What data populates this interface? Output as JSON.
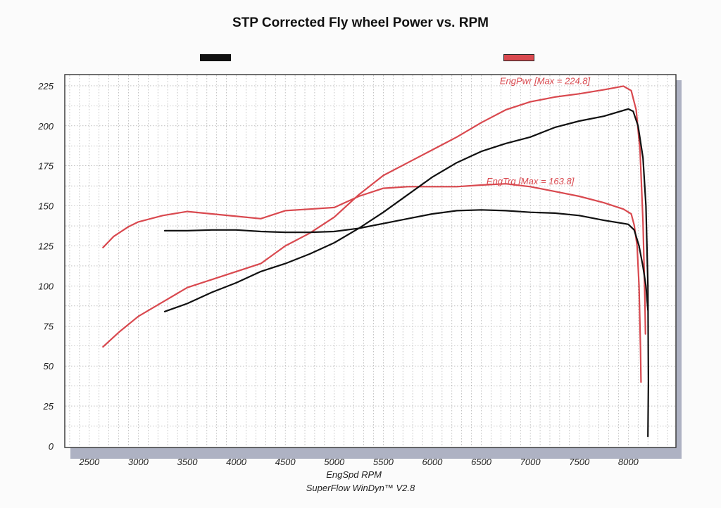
{
  "title": "STP Corrected Fly wheel Power vs. RPM",
  "footer": "SuperFlow WinDyn™ V2.8",
  "colors": {
    "red": "#d9494f",
    "black": "#111111",
    "grid": "#9a9a9a",
    "shadow": "#aeb2c3"
  },
  "chart_data": {
    "type": "line",
    "title": "STP Corrected Fly wheel Power vs. RPM",
    "xlabel": "EngSpd  RPM",
    "ylabel": "",
    "xlim": [
      2250,
      8400
    ],
    "ylim": [
      0,
      232
    ],
    "x_ticks": [
      2500,
      3000,
      3500,
      4000,
      4500,
      5000,
      5500,
      6000,
      6500,
      7000,
      7500,
      8000
    ],
    "y_ticks": [
      0,
      25,
      50,
      75,
      100,
      125,
      150,
      175,
      200,
      225
    ],
    "grid": true,
    "legend": [
      "black",
      "red"
    ],
    "annotations": [
      {
        "text": "EngPwr [Max = 224.8]",
        "x": 7150,
        "y": 226,
        "color": "red"
      },
      {
        "text": "EngTrq [Max = 163.8]",
        "x": 7000,
        "y": 163.5,
        "color": "red"
      }
    ],
    "series": [
      {
        "color": "red",
        "points": [
          [
            2640,
            62
          ],
          [
            2800,
            71
          ],
          [
            3000,
            81
          ],
          [
            3250,
            90
          ],
          [
            3500,
            99
          ],
          [
            3750,
            104
          ],
          [
            4000,
            109
          ],
          [
            4250,
            114
          ],
          [
            4500,
            125
          ],
          [
            4750,
            133
          ],
          [
            5000,
            143
          ],
          [
            5250,
            157
          ],
          [
            5500,
            169
          ],
          [
            5750,
            177
          ],
          [
            6000,
            185
          ],
          [
            6250,
            193
          ],
          [
            6500,
            202
          ],
          [
            6750,
            210
          ],
          [
            7000,
            215
          ],
          [
            7250,
            218
          ],
          [
            7500,
            220
          ],
          [
            7750,
            222.5
          ],
          [
            7950,
            224.8
          ],
          [
            8030,
            222
          ],
          [
            8080,
            210
          ],
          [
            8120,
            185
          ],
          [
            8150,
            140
          ],
          [
            8170,
            90
          ],
          [
            8175,
            70
          ]
        ]
      },
      {
        "color": "red",
        "points": [
          [
            2640,
            124
          ],
          [
            2750,
            131
          ],
          [
            2900,
            137
          ],
          [
            3000,
            140
          ],
          [
            3250,
            144
          ],
          [
            3500,
            146.5
          ],
          [
            3750,
            145
          ],
          [
            4000,
            143.5
          ],
          [
            4250,
            142
          ],
          [
            4500,
            147
          ],
          [
            4750,
            148
          ],
          [
            5000,
            149
          ],
          [
            5250,
            156
          ],
          [
            5500,
            161
          ],
          [
            5750,
            162
          ],
          [
            6000,
            162
          ],
          [
            6250,
            162
          ],
          [
            6500,
            163
          ],
          [
            6750,
            163.8
          ],
          [
            7000,
            162
          ],
          [
            7250,
            159
          ],
          [
            7500,
            156
          ],
          [
            7750,
            152
          ],
          [
            7950,
            148
          ],
          [
            8030,
            145
          ],
          [
            8060,
            138
          ],
          [
            8090,
            125
          ],
          [
            8110,
            100
          ],
          [
            8125,
            60
          ],
          [
            8130,
            40
          ]
        ]
      },
      {
        "color": "black",
        "points": [
          [
            3270,
            84
          ],
          [
            3500,
            89
          ],
          [
            3750,
            96
          ],
          [
            4000,
            102
          ],
          [
            4250,
            109
          ],
          [
            4500,
            114
          ],
          [
            4750,
            120
          ],
          [
            5000,
            127
          ],
          [
            5250,
            136
          ],
          [
            5500,
            146
          ],
          [
            5750,
            157
          ],
          [
            6000,
            168
          ],
          [
            6250,
            177
          ],
          [
            6500,
            184
          ],
          [
            6750,
            189
          ],
          [
            7000,
            193
          ],
          [
            7250,
            199
          ],
          [
            7500,
            203
          ],
          [
            7750,
            206
          ],
          [
            8000,
            210.5
          ],
          [
            8050,
            209
          ],
          [
            8100,
            200
          ],
          [
            8150,
            180
          ],
          [
            8180,
            150
          ],
          [
            8200,
            100
          ],
          [
            8205,
            40
          ],
          [
            8200,
            6
          ]
        ]
      },
      {
        "color": "black",
        "points": [
          [
            3270,
            134.5
          ],
          [
            3500,
            134.5
          ],
          [
            3750,
            135
          ],
          [
            4000,
            135
          ],
          [
            4250,
            134
          ],
          [
            4500,
            133.5
          ],
          [
            4750,
            133.5
          ],
          [
            5000,
            134
          ],
          [
            5250,
            136
          ],
          [
            5500,
            139
          ],
          [
            5750,
            142
          ],
          [
            6000,
            145
          ],
          [
            6250,
            147
          ],
          [
            6500,
            147.5
          ],
          [
            6750,
            147
          ],
          [
            7000,
            146
          ],
          [
            7250,
            145.5
          ],
          [
            7500,
            144
          ],
          [
            7750,
            141
          ],
          [
            8000,
            138.5
          ],
          [
            8060,
            135
          ],
          [
            8110,
            125
          ],
          [
            8150,
            112
          ],
          [
            8180,
            100
          ],
          [
            8200,
            85
          ]
        ]
      }
    ]
  }
}
